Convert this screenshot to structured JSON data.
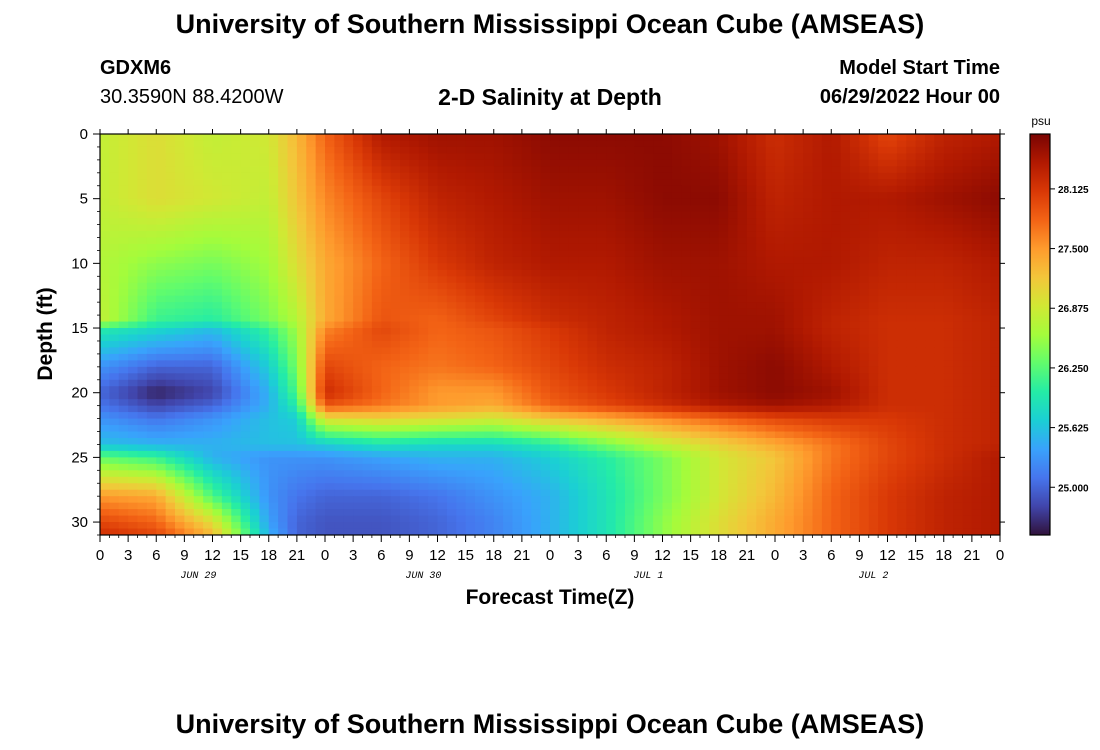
{
  "page": {
    "title": "University of Southern Mississippi Ocean Cube (AMSEAS)",
    "bottom_title": "University of Southern Mississippi Ocean Cube (AMSEAS)",
    "station_id": "GDXM6",
    "station_coords": "30.3590N  88.4200W",
    "chart_title": "2-D Salinity at Depth",
    "model_start_label": "Model Start Time",
    "model_start_value": "06/29/2022 Hour 00"
  },
  "chart_data": {
    "type": "heatmap",
    "title": "2-D Salinity at Depth",
    "xlabel": "Forecast Time(Z)",
    "ylabel": "Depth (ft)",
    "x_range_hours": [
      0,
      96
    ],
    "y_range_ft": [
      0,
      31
    ],
    "x_tick_labels": [
      "0",
      "3",
      "6",
      "9",
      "12",
      "15",
      "18",
      "21",
      "0",
      "3",
      "6",
      "9",
      "12",
      "15",
      "18",
      "21",
      "0",
      "3",
      "6",
      "9",
      "12",
      "15",
      "18",
      "21",
      "0",
      "3",
      "6",
      "9",
      "12",
      "15",
      "18",
      "21",
      "0"
    ],
    "x_date_labels": [
      {
        "label": "JUN 29",
        "hour": 10.5
      },
      {
        "label": "JUN 30",
        "hour": 34.5
      },
      {
        "label": "JUL 1",
        "hour": 58.5
      },
      {
        "label": "JUL 2",
        "hour": 82.5
      }
    ],
    "y_ticks": [
      0,
      5,
      10,
      15,
      20,
      25,
      30
    ],
    "y_tick_labels": [
      "0",
      "5",
      "10",
      "15",
      "20",
      "25",
      "30"
    ],
    "colorbar": {
      "unit": "psu",
      "range": [
        24.5,
        28.7
      ],
      "ticks": [
        25.0,
        25.625,
        26.25,
        26.875,
        27.5,
        28.125
      ],
      "tick_labels": [
        "25.000",
        "25.625",
        "26.250",
        "26.875",
        "27.500",
        "28.125"
      ]
    },
    "hours": [
      0,
      6,
      12,
      18,
      21,
      24,
      30,
      36,
      42,
      48,
      54,
      60,
      66,
      72,
      78,
      84,
      90,
      96
    ],
    "depths": [
      0,
      5,
      10,
      14.5,
      15,
      18,
      20,
      21,
      22,
      24,
      25,
      28,
      30,
      31
    ],
    "values": [
      [
        26.8,
        27.0,
        26.8,
        26.9,
        27.3,
        27.8,
        28.4,
        28.5,
        28.5,
        28.6,
        28.6,
        28.6,
        28.5,
        28.2,
        28.4,
        28.0,
        28.3,
        28.4
      ],
      [
        26.8,
        27.0,
        26.9,
        26.8,
        27.2,
        27.6,
        28.0,
        28.3,
        28.4,
        28.5,
        28.5,
        28.6,
        28.6,
        28.3,
        28.4,
        28.4,
        28.5,
        28.6
      ],
      [
        26.7,
        26.5,
        26.4,
        26.6,
        27.0,
        27.4,
        27.8,
        28.1,
        28.3,
        28.4,
        28.4,
        28.5,
        28.5,
        28.4,
        28.4,
        28.3,
        28.3,
        28.4
      ],
      [
        26.8,
        26.1,
        26.0,
        26.4,
        26.7,
        27.4,
        27.9,
        27.8,
        28.0,
        28.2,
        28.3,
        28.4,
        28.5,
        28.5,
        28.3,
        28.2,
        28.2,
        28.3
      ],
      [
        26.0,
        25.8,
        25.6,
        26.1,
        26.6,
        27.6,
        28.0,
        27.8,
        27.9,
        28.1,
        28.3,
        28.4,
        28.5,
        28.5,
        28.3,
        28.2,
        28.2,
        28.3
      ],
      [
        25.3,
        25.0,
        25.0,
        25.7,
        26.4,
        28.0,
        27.8,
        27.7,
        27.8,
        28.0,
        28.2,
        28.3,
        28.5,
        28.6,
        28.4,
        28.2,
        28.2,
        28.3
      ],
      [
        25.0,
        24.6,
        24.8,
        25.5,
        26.2,
        28.2,
        27.8,
        27.5,
        27.5,
        27.9,
        28.1,
        28.3,
        28.5,
        28.6,
        28.5,
        28.2,
        28.2,
        28.3
      ],
      [
        25.1,
        24.8,
        25.0,
        25.5,
        26.0,
        27.9,
        27.7,
        27.5,
        27.4,
        27.8,
        28.0,
        28.2,
        28.4,
        28.5,
        28.4,
        28.2,
        28.2,
        28.3
      ],
      [
        25.3,
        25.1,
        25.3,
        25.6,
        25.7,
        27.0,
        27.1,
        27.0,
        26.9,
        27.2,
        27.4,
        27.6,
        27.8,
        28.0,
        28.1,
        28.1,
        28.2,
        28.3
      ],
      [
        25.6,
        25.5,
        25.5,
        25.6,
        25.6,
        25.7,
        25.9,
        25.8,
        25.8,
        26.0,
        26.4,
        26.8,
        27.1,
        27.4,
        27.7,
        28.0,
        28.2,
        28.3
      ],
      [
        26.3,
        26.1,
        25.5,
        25.3,
        25.3,
        25.3,
        25.4,
        25.5,
        25.5,
        25.7,
        26.0,
        26.4,
        26.9,
        27.2,
        27.7,
        28.0,
        28.2,
        28.4
      ],
      [
        27.5,
        27.4,
        26.2,
        25.3,
        25.1,
        25.0,
        25.0,
        25.1,
        25.3,
        25.5,
        25.9,
        26.4,
        26.9,
        27.3,
        27.8,
        28.1,
        28.3,
        28.4
      ],
      [
        28.0,
        27.8,
        27.0,
        25.4,
        25.0,
        24.9,
        24.9,
        25.0,
        25.2,
        25.5,
        25.9,
        26.5,
        27.0,
        27.4,
        27.8,
        28.1,
        28.3,
        28.4
      ],
      [
        28.2,
        28.0,
        27.3,
        25.5,
        25.0,
        24.9,
        24.9,
        25.0,
        25.2,
        25.5,
        25.9,
        26.5,
        27.0,
        27.4,
        27.8,
        28.1,
        28.3,
        28.4
      ]
    ]
  },
  "colors": {
    "scale": [
      "#30123b",
      "#4145ab",
      "#4675ed",
      "#39a2fc",
      "#1bcfd4",
      "#24eca6",
      "#61fc6c",
      "#a4fc3b",
      "#d1e834",
      "#f3c63a",
      "#fe9b2d",
      "#f36315",
      "#d93806",
      "#b11901",
      "#7a0402"
    ]
  }
}
